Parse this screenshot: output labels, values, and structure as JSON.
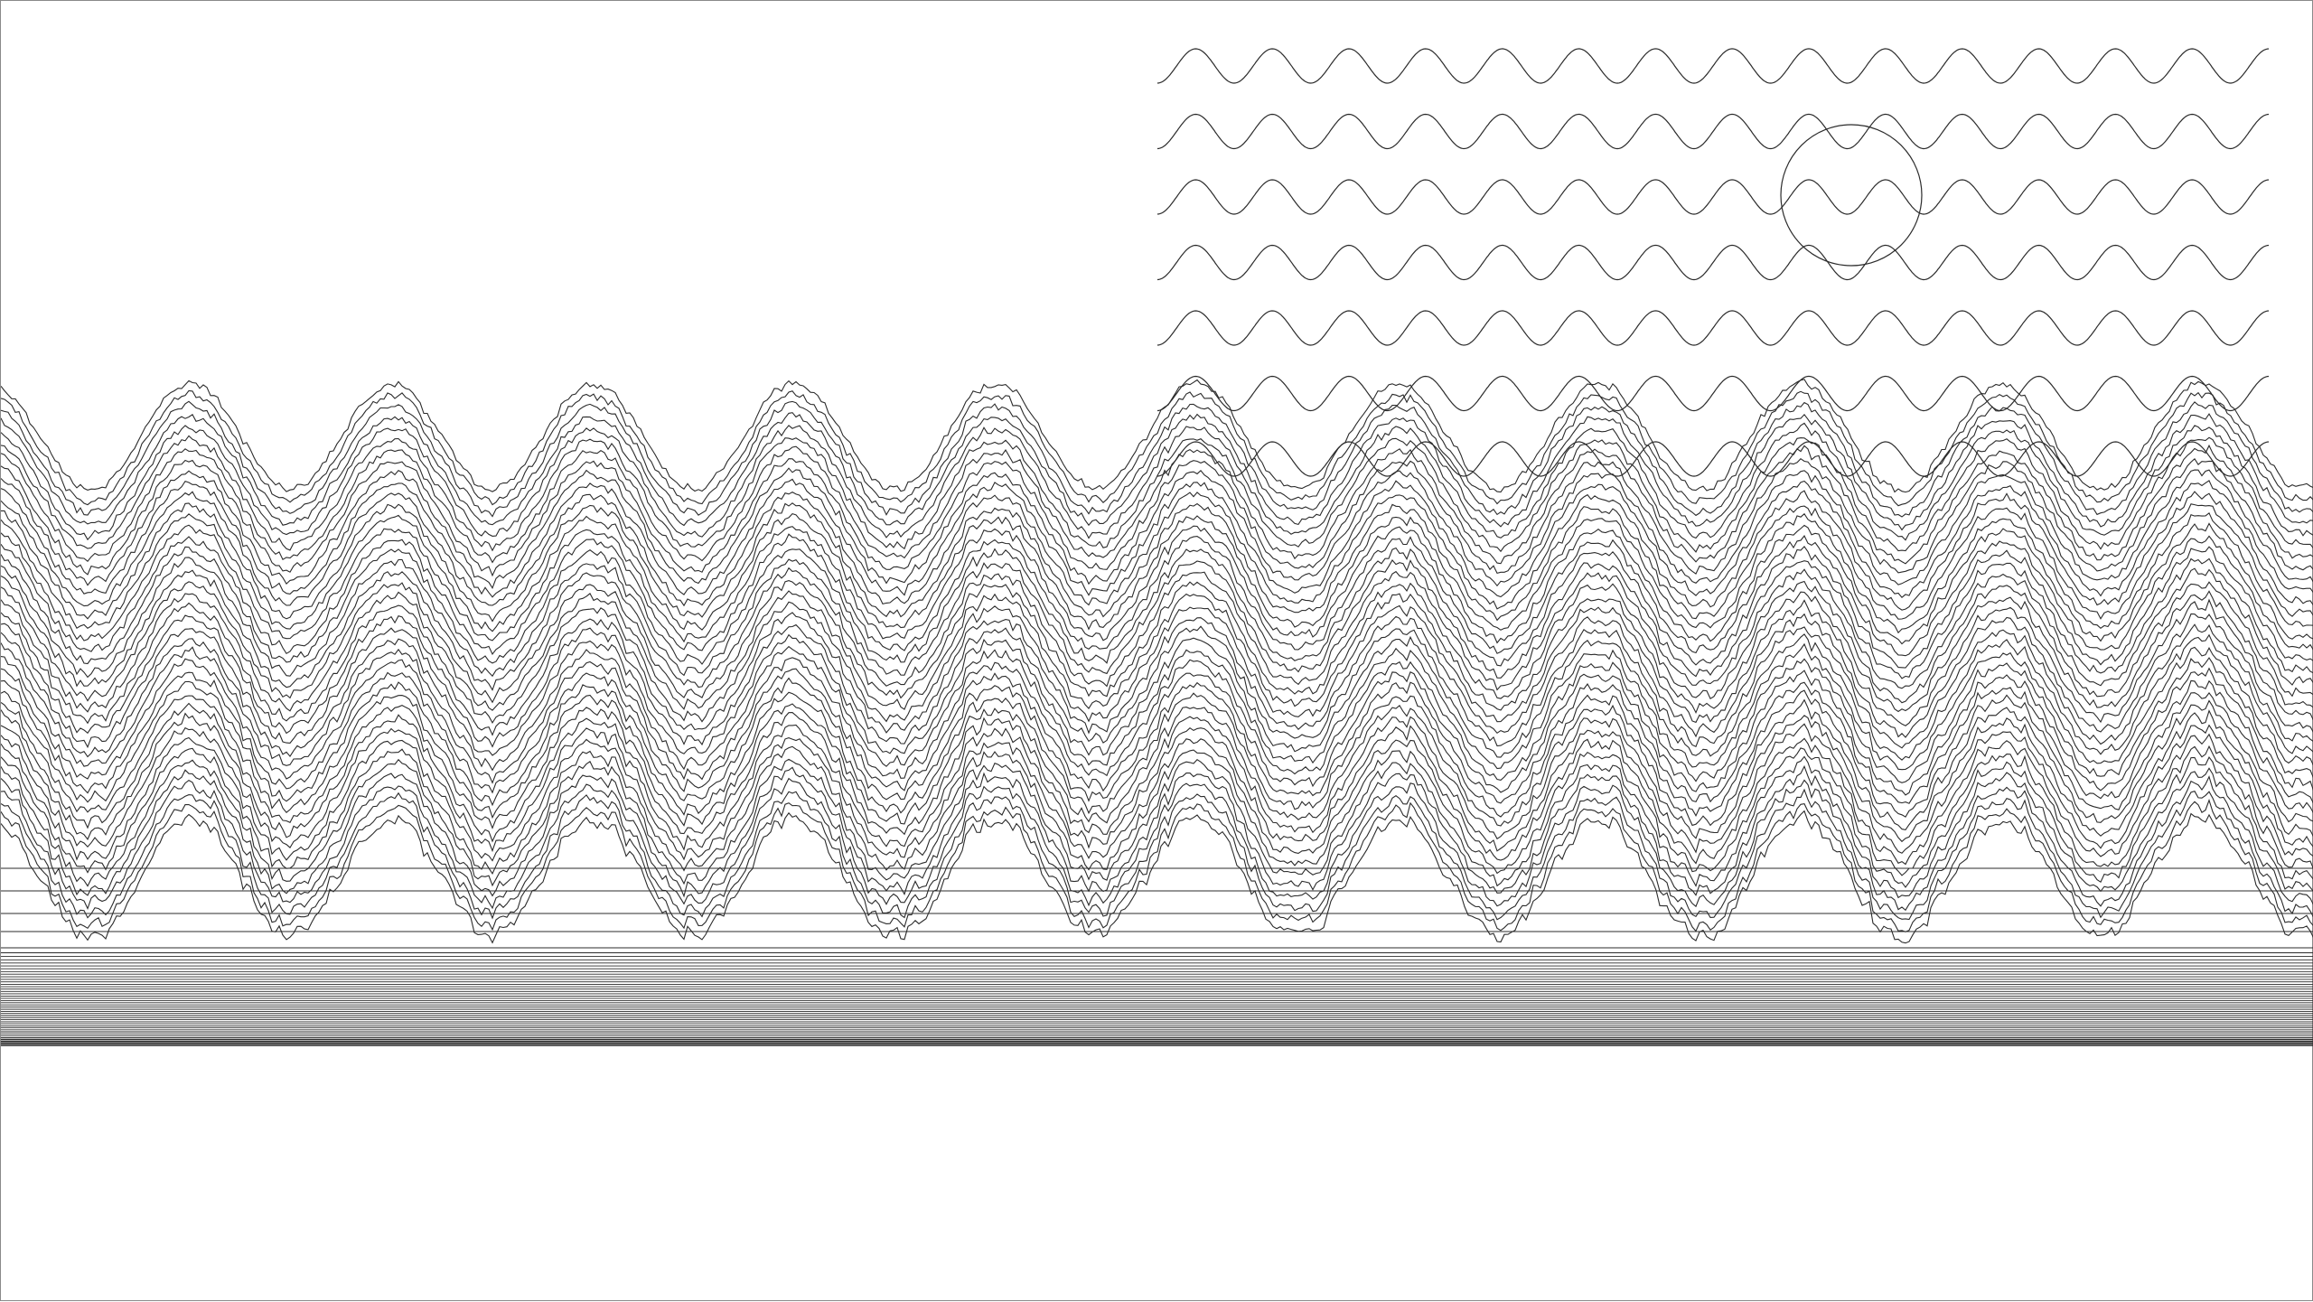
{
  "artwork": {
    "stroke_color": "#2b2b2b",
    "background_color": "#ffffff",
    "frame_color": "#8a8a8a",
    "ridge_field": {
      "line_count": 40,
      "wave_count": 11.5,
      "description_shape": "stacked noisy sine ridges"
    },
    "sine_grid": {
      "row_count": 7,
      "cycles_per_row": 14.5
    },
    "circle_marker": {
      "present": true
    },
    "horizontal_bands": {
      "sparse_line_count": 4,
      "dense_line_count": 42
    }
  }
}
